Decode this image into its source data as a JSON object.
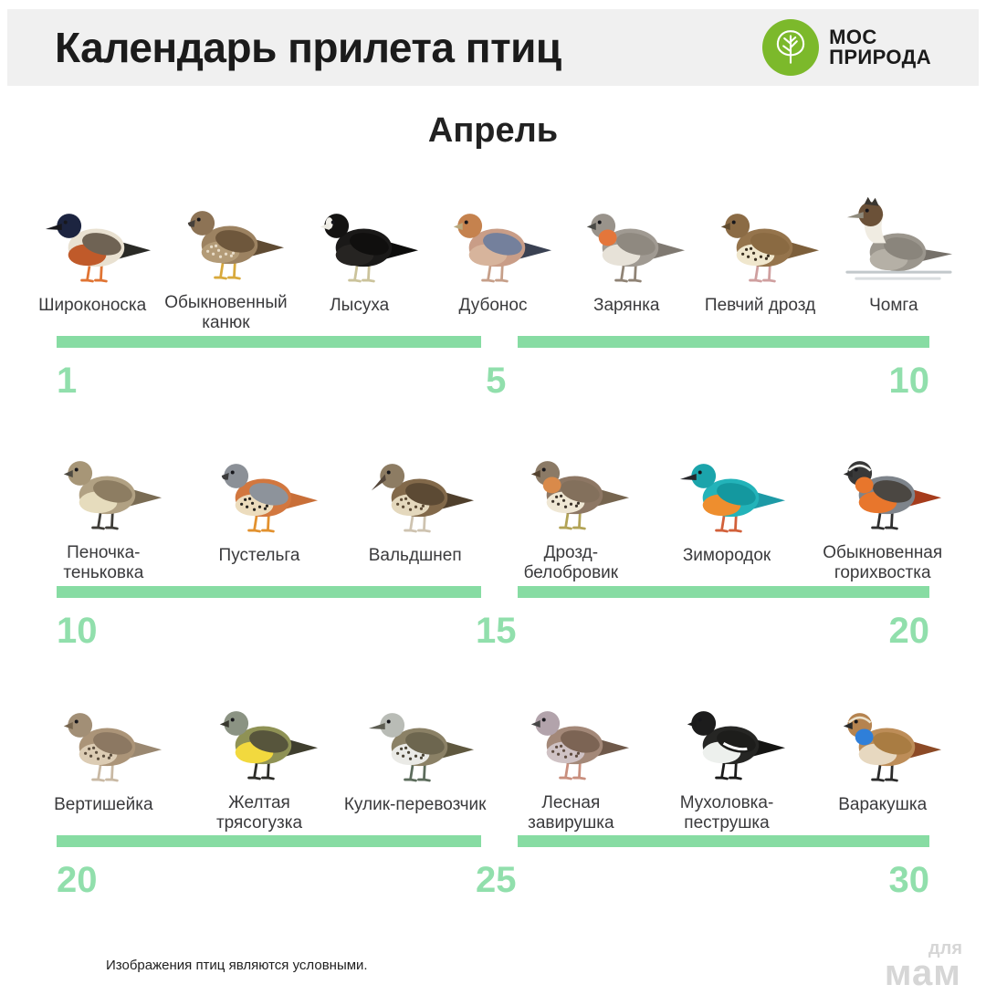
{
  "header": {
    "title": "Календарь прилета птиц",
    "logo": {
      "line1": "МОС",
      "line2": "ПРИРОДА",
      "icon": "tree-icon",
      "color": "#7cb92b"
    }
  },
  "month": "Апрель",
  "colors": {
    "header_bg": "#f0f0f0",
    "bar_green": "#87dca3",
    "number_green": "#91dfac",
    "label_text": "#3a3a3c",
    "watermark_gray": "#d6d6d6"
  },
  "rows": [
    {
      "date_start": "1",
      "date_mid": "5",
      "date_end": "10",
      "birds": [
        {
          "label": "Широконоска",
          "icon": "shoveler-duck-icon",
          "beak": "long",
          "pose": "standing",
          "colors": {
            "body": "#e9e1d1",
            "belly": "#c05a2a",
            "wing": "#6f6354",
            "tail": "#2a2a26",
            "head": "#1c2440",
            "beak": "#17171c",
            "legs": "#e07433"
          }
        },
        {
          "label": "Обыкновенный канюк",
          "icon": "buzzard-icon",
          "beak": "hooked",
          "pose": "standing",
          "colors": {
            "body": "#9c8261",
            "belly": "#b39b77",
            "wing": "#6e573c",
            "tail": "#5f4b33",
            "head": "#8d7355",
            "beak": "#46403a",
            "legs": "#d8a93c",
            "speckle": "#e8dcc8"
          }
        },
        {
          "label": "Лысуха",
          "icon": "coot-icon",
          "beak": "short",
          "pose": "standing",
          "colors": {
            "body": "#1a1918",
            "belly": "#262422",
            "wing": "#100f0e",
            "tail": "#0d0d0c",
            "head": "#141312",
            "beak": "#eceae2",
            "legs": "#cbc39b",
            "shield": "#f2f0ea"
          }
        },
        {
          "label": "Дубонос",
          "icon": "hawfinch-icon",
          "beak": "short",
          "pose": "standing",
          "colors": {
            "body": "#c99d87",
            "belly": "#d7b49c",
            "wing": "#74809c",
            "tail": "#3a4152",
            "head": "#c5824e",
            "beak": "#b9a87e",
            "legs": "#c69f89"
          }
        },
        {
          "label": "Зарянка",
          "icon": "robin-icon",
          "beak": "short",
          "pose": "standing",
          "colors": {
            "body": "#a09a92",
            "belly": "#e7e2d8",
            "wing": "#8f8980",
            "tail": "#7f7971",
            "head": "#99938b",
            "beak": "#4a4a46",
            "legs": "#8f8375",
            "accent": "#e4763b"
          }
        },
        {
          "label": "Певчий дрозд",
          "icon": "song-thrush-icon",
          "beak": "short",
          "pose": "standing",
          "colors": {
            "body": "#95744c",
            "belly": "#f0e7cd",
            "wing": "#8a6a42",
            "tail": "#7d5f3b",
            "head": "#8b6b45",
            "beak": "#5f4a2e",
            "legs": "#cf9f9f",
            "speckle": "#3a2f20"
          }
        },
        {
          "label": "Чомга",
          "icon": "great-crested-grebe-icon",
          "beak": "long",
          "pose": "swimming",
          "colors": {
            "body": "#9b968d",
            "belly": "#b5b0a6",
            "wing": "#8a857c",
            "tail": "#76716a",
            "head": "#6b5138",
            "crest": "#3a3630",
            "neck": "#f0ece2",
            "beak": "#8f8a7c",
            "water": "#aeb6ba"
          }
        }
      ]
    },
    {
      "date_start": "10",
      "date_mid": "15",
      "date_end": "20",
      "birds": [
        {
          "label": "Пеночка-теньковка",
          "icon": "chiffchaff-icon",
          "beak": "short",
          "pose": "standing",
          "colors": {
            "body": "#b1a183",
            "belly": "#e6dcbd",
            "wing": "#8d7d62",
            "tail": "#7a6c54",
            "head": "#a79677",
            "beak": "#4f4b42",
            "legs": "#3f3d38"
          }
        },
        {
          "label": "Пустельга",
          "icon": "kestrel-icon",
          "beak": "hooked",
          "pose": "standing",
          "colors": {
            "body": "#d2773f",
            "belly": "#ecdcbd",
            "wing": "#8d939b",
            "tail": "#c96f38",
            "head": "#8b9097",
            "beak": "#3c3c3c",
            "legs": "#e2912e",
            "speckle": "#27241f"
          }
        },
        {
          "label": "Вальдшнеп",
          "icon": "woodcock-icon",
          "beak": "down",
          "pose": "standing",
          "colors": {
            "body": "#82694a",
            "belly": "#e4d8bd",
            "wing": "#5c4a34",
            "tail": "#4f3f2c",
            "head": "#8d7c63",
            "beak": "#54463a",
            "legs": "#cec3b0",
            "speckle": "#5c4a34"
          }
        },
        {
          "label": "Дрозд-белобровик",
          "icon": "redwing-icon",
          "beak": "short",
          "pose": "standing",
          "colors": {
            "body": "#8d7764",
            "belly": "#efe7d4",
            "wing": "#83705c",
            "tail": "#76654f",
            "head": "#8b7a66",
            "beak": "#53422f",
            "legs": "#b2a356",
            "speckle": "#3c332a",
            "accent": "#d98a4a"
          }
        },
        {
          "label": "Зимородок",
          "icon": "kingfisher-icon",
          "beak": "long",
          "pose": "standing",
          "colors": {
            "body": "#23b3b9",
            "belly": "#ee8e2e",
            "wing": "#14989f",
            "tail": "#1d9aa6",
            "head": "#1ba4ab",
            "beak": "#26262a",
            "legs": "#d2603a"
          }
        },
        {
          "label": "Обыкновенная горихвостка",
          "icon": "redstart-icon",
          "beak": "short",
          "pose": "standing",
          "colors": {
            "body": "#7e848b",
            "belly": "#e8762c",
            "wing": "#4b4742",
            "tail": "#a63c1c",
            "head": "#383838",
            "beak": "#2c2c2c",
            "legs": "#2f2f2f",
            "accent": "#e8762c",
            "brow": "#f0f0ec"
          }
        }
      ]
    },
    {
      "date_start": "20",
      "date_mid": "25",
      "date_end": "30",
      "birds": [
        {
          "label": "Вертишейка",
          "icon": "wryneck-icon",
          "beak": "short",
          "pose": "standing",
          "colors": {
            "body": "#ab9478",
            "belly": "#dcccb4",
            "wing": "#8c7862",
            "tail": "#9a8871",
            "head": "#a28f76",
            "beak": "#77664f",
            "legs": "#c9b9a4",
            "speckle": "#5c4e3e"
          }
        },
        {
          "label": "Желтая трясогузка",
          "icon": "yellow-wagtail-icon",
          "beak": "short",
          "pose": "standing",
          "colors": {
            "body": "#8f9255",
            "belly": "#f2d93e",
            "wing": "#57553c",
            "tail": "#3f3e2e",
            "head": "#8b9383",
            "beak": "#38382f",
            "legs": "#2c2c28"
          }
        },
        {
          "label": "Кулик-перевозчик",
          "icon": "common-sandpiper-icon",
          "beak": "long",
          "pose": "standing",
          "colors": {
            "body": "#8b8166",
            "belly": "#eaeae6",
            "wing": "#6d664f",
            "tail": "#5f583f",
            "head": "#b9bcb6",
            "beak": "#5d5d52",
            "legs": "#5c6c5c",
            "speckle": "#4a4436"
          }
        },
        {
          "label": "Лесная завирушка",
          "icon": "dunnock-icon",
          "beak": "short",
          "pose": "standing",
          "colors": {
            "body": "#a38878",
            "belly": "#cfc2c4",
            "wing": "#7c6454",
            "tail": "#6f594a",
            "head": "#b2a3ab",
            "beak": "#474747",
            "legs": "#c98f7e",
            "speckle": "#5f4c40"
          }
        },
        {
          "label": "Мухоловка-пеструшка",
          "icon": "pied-flycatcher-icon",
          "beak": "short",
          "pose": "standing",
          "colors": {
            "body": "#262624",
            "belly": "#edf0ed",
            "wing": "#1d1d1b",
            "tail": "#151513",
            "head": "#1c1c1c",
            "beak": "#1a1a1a",
            "legs": "#1a1a1a",
            "wingbar": "#ffffff"
          }
        },
        {
          "label": "Варакушка",
          "icon": "bluethroat-icon",
          "beak": "short",
          "pose": "standing",
          "colors": {
            "body": "#bd8d58",
            "belly": "#e7d8c0",
            "wing": "#a97c42",
            "tail": "#8c4a26",
            "head": "#b5834f",
            "beak": "#2b2b2b",
            "legs": "#2b2b2b",
            "accent": "#2f7fd9",
            "brow": "#ece2cc"
          }
        }
      ]
    }
  ],
  "footer": {
    "note": "Изображения птиц являются условными.",
    "watermark": {
      "line1": "для",
      "line2": "мам"
    }
  }
}
